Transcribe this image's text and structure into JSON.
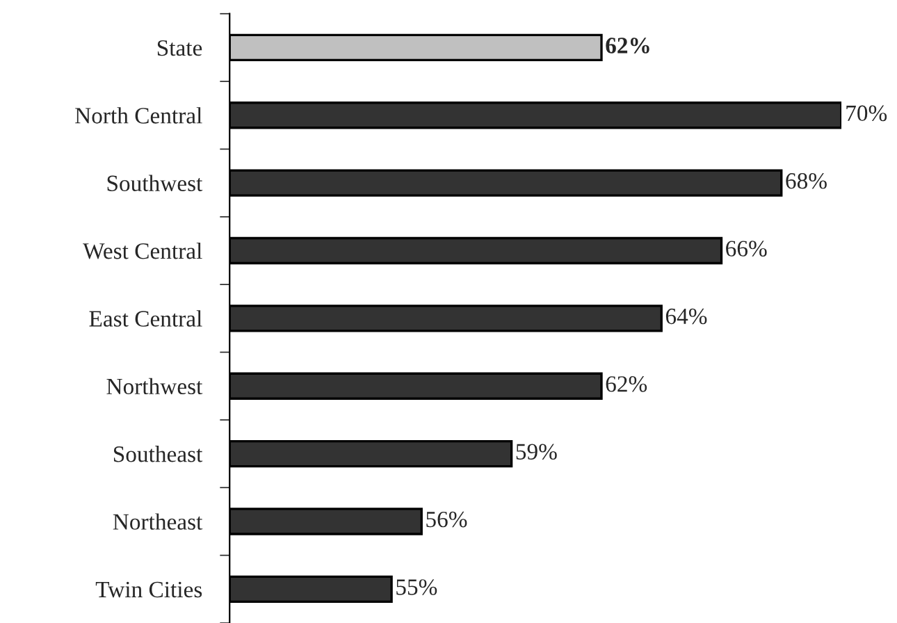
{
  "chart_data": {
    "type": "bar",
    "orientation": "horizontal",
    "categories": [
      "State",
      "North Central",
      "Southwest",
      "West Central",
      "East Central",
      "Northwest",
      "Southeast",
      "Northeast",
      "Twin Cities"
    ],
    "values": [
      62,
      70,
      68,
      66,
      64,
      62,
      59,
      56,
      55
    ],
    "colors": [
      "#c0c0c0",
      "#333333",
      "#333333",
      "#333333",
      "#333333",
      "#333333",
      "#333333",
      "#333333",
      "#333333"
    ],
    "value_labels": [
      "62%",
      "70%",
      "68%",
      "66%",
      "64%",
      "62%",
      "59%",
      "56%",
      "55%"
    ],
    "xlim": [
      49.6,
      70
    ],
    "tick_labels": "y",
    "grid": false,
    "legend": false
  }
}
